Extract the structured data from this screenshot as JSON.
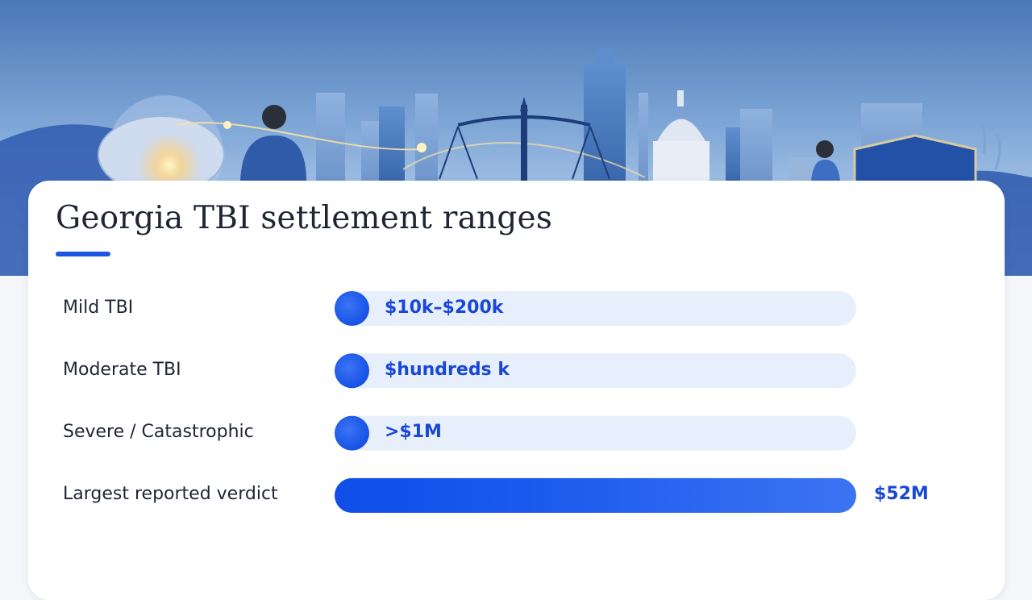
{
  "title": "Georgia TBI settlement ranges",
  "colors": {
    "accent": "#1a55e3",
    "track": "#e8effc",
    "value_text": "#1948d6",
    "title_text": "#1f2533"
  },
  "chart_data": {
    "type": "bar",
    "title": "Georgia TBI settlement ranges",
    "categories": [
      "Mild TBI",
      "Moderate TBI",
      "Severe / Catastrophic",
      "Largest reported verdict"
    ],
    "values": [
      "$10k–$200k",
      "$hundreds k",
      ">$1M",
      "$52M"
    ],
    "value_label_position": [
      "inside",
      "inside",
      "inside",
      "outside-right"
    ],
    "filled": [
      false,
      false,
      false,
      true
    ],
    "fill_fraction": [
      0.07,
      0.07,
      0.07,
      1.0
    ],
    "grid": false,
    "legend": "none"
  }
}
